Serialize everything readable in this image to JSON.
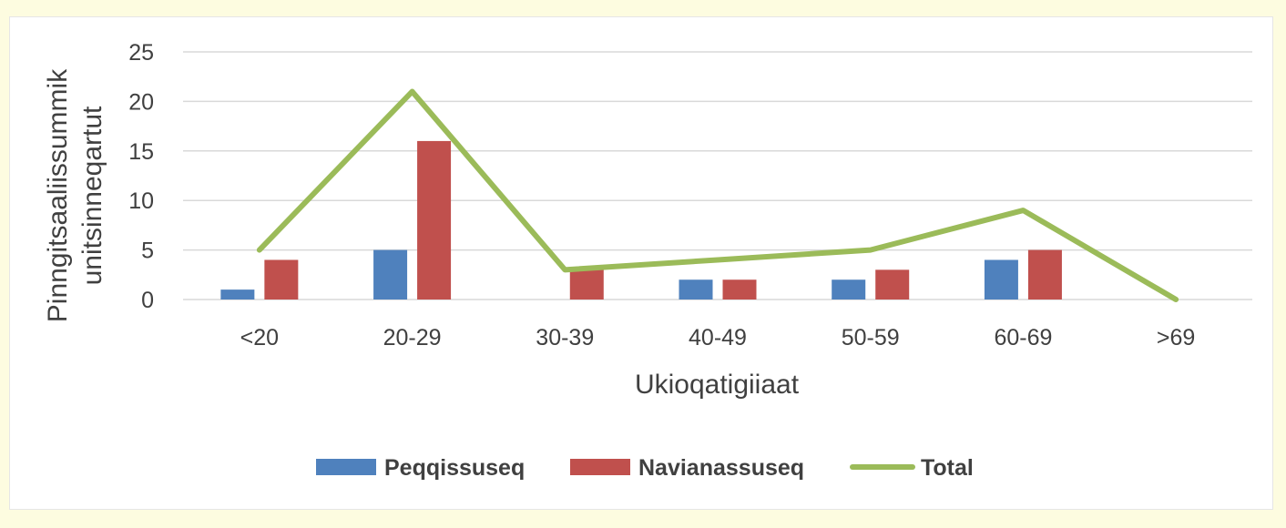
{
  "chart_data": {
    "type": "bar",
    "categories": [
      "<20",
      "20-29",
      "30-39",
      "40-49",
      "50-59",
      "60-69",
      ">69"
    ],
    "series": [
      {
        "name": "Peqqissuseq",
        "type": "bar",
        "color": "#4f81bd",
        "values": [
          1,
          5,
          0,
          2,
          2,
          4,
          0
        ]
      },
      {
        "name": "Navianassuseq",
        "type": "bar",
        "color": "#c0504d",
        "values": [
          4,
          16,
          3,
          2,
          3,
          5,
          0
        ]
      },
      {
        "name": "Total",
        "type": "line",
        "color": "#9bbb59",
        "values": [
          5,
          21,
          3,
          4,
          5,
          9,
          0
        ]
      }
    ],
    "xlabel": "Ukioqatigiiaat",
    "ylabel_lines": [
      "Pinngitsaaliissummik",
      "unitsinneqartut"
    ],
    "ylim": [
      0,
      25
    ],
    "yticks": [
      "0",
      "5",
      "10",
      "15",
      "20",
      "25"
    ],
    "grid": true,
    "legend_position": "bottom"
  }
}
